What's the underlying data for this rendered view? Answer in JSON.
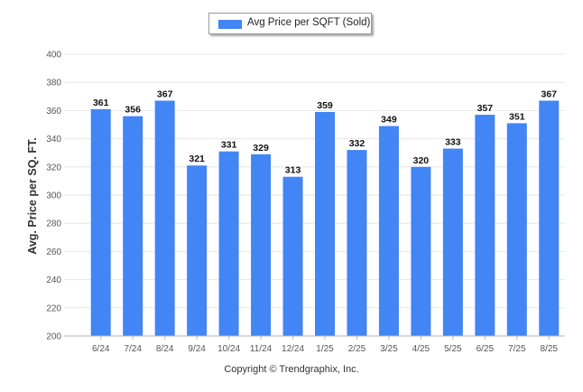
{
  "legend": {
    "label": "Avg Price per SQFT (Sold)"
  },
  "copyright": "Copyright © Trendgraphix, Inc.",
  "chart_data": {
    "type": "bar",
    "ylabel": "Avg. Price per SQ. FT.",
    "xlabel": "",
    "categories": [
      "6/24",
      "7/24",
      "8/24",
      "9/24",
      "10/24",
      "11/24",
      "12/24",
      "1/25",
      "2/25",
      "3/25",
      "4/25",
      "5/25",
      "6/25",
      "7/25",
      "8/25"
    ],
    "series": [
      {
        "name": "Avg Price per SQFT (Sold)",
        "values": [
          361,
          356,
          367,
          321,
          331,
          329,
          313,
          359,
          332,
          349,
          320,
          333,
          357,
          351,
          367
        ],
        "color": "#4285f4"
      }
    ],
    "ylim": [
      200,
      400
    ],
    "yticks": [
      200,
      220,
      240,
      260,
      280,
      300,
      320,
      340,
      360,
      380,
      400
    ],
    "grid": true,
    "legend_position": "top-center",
    "data_labels": true
  }
}
